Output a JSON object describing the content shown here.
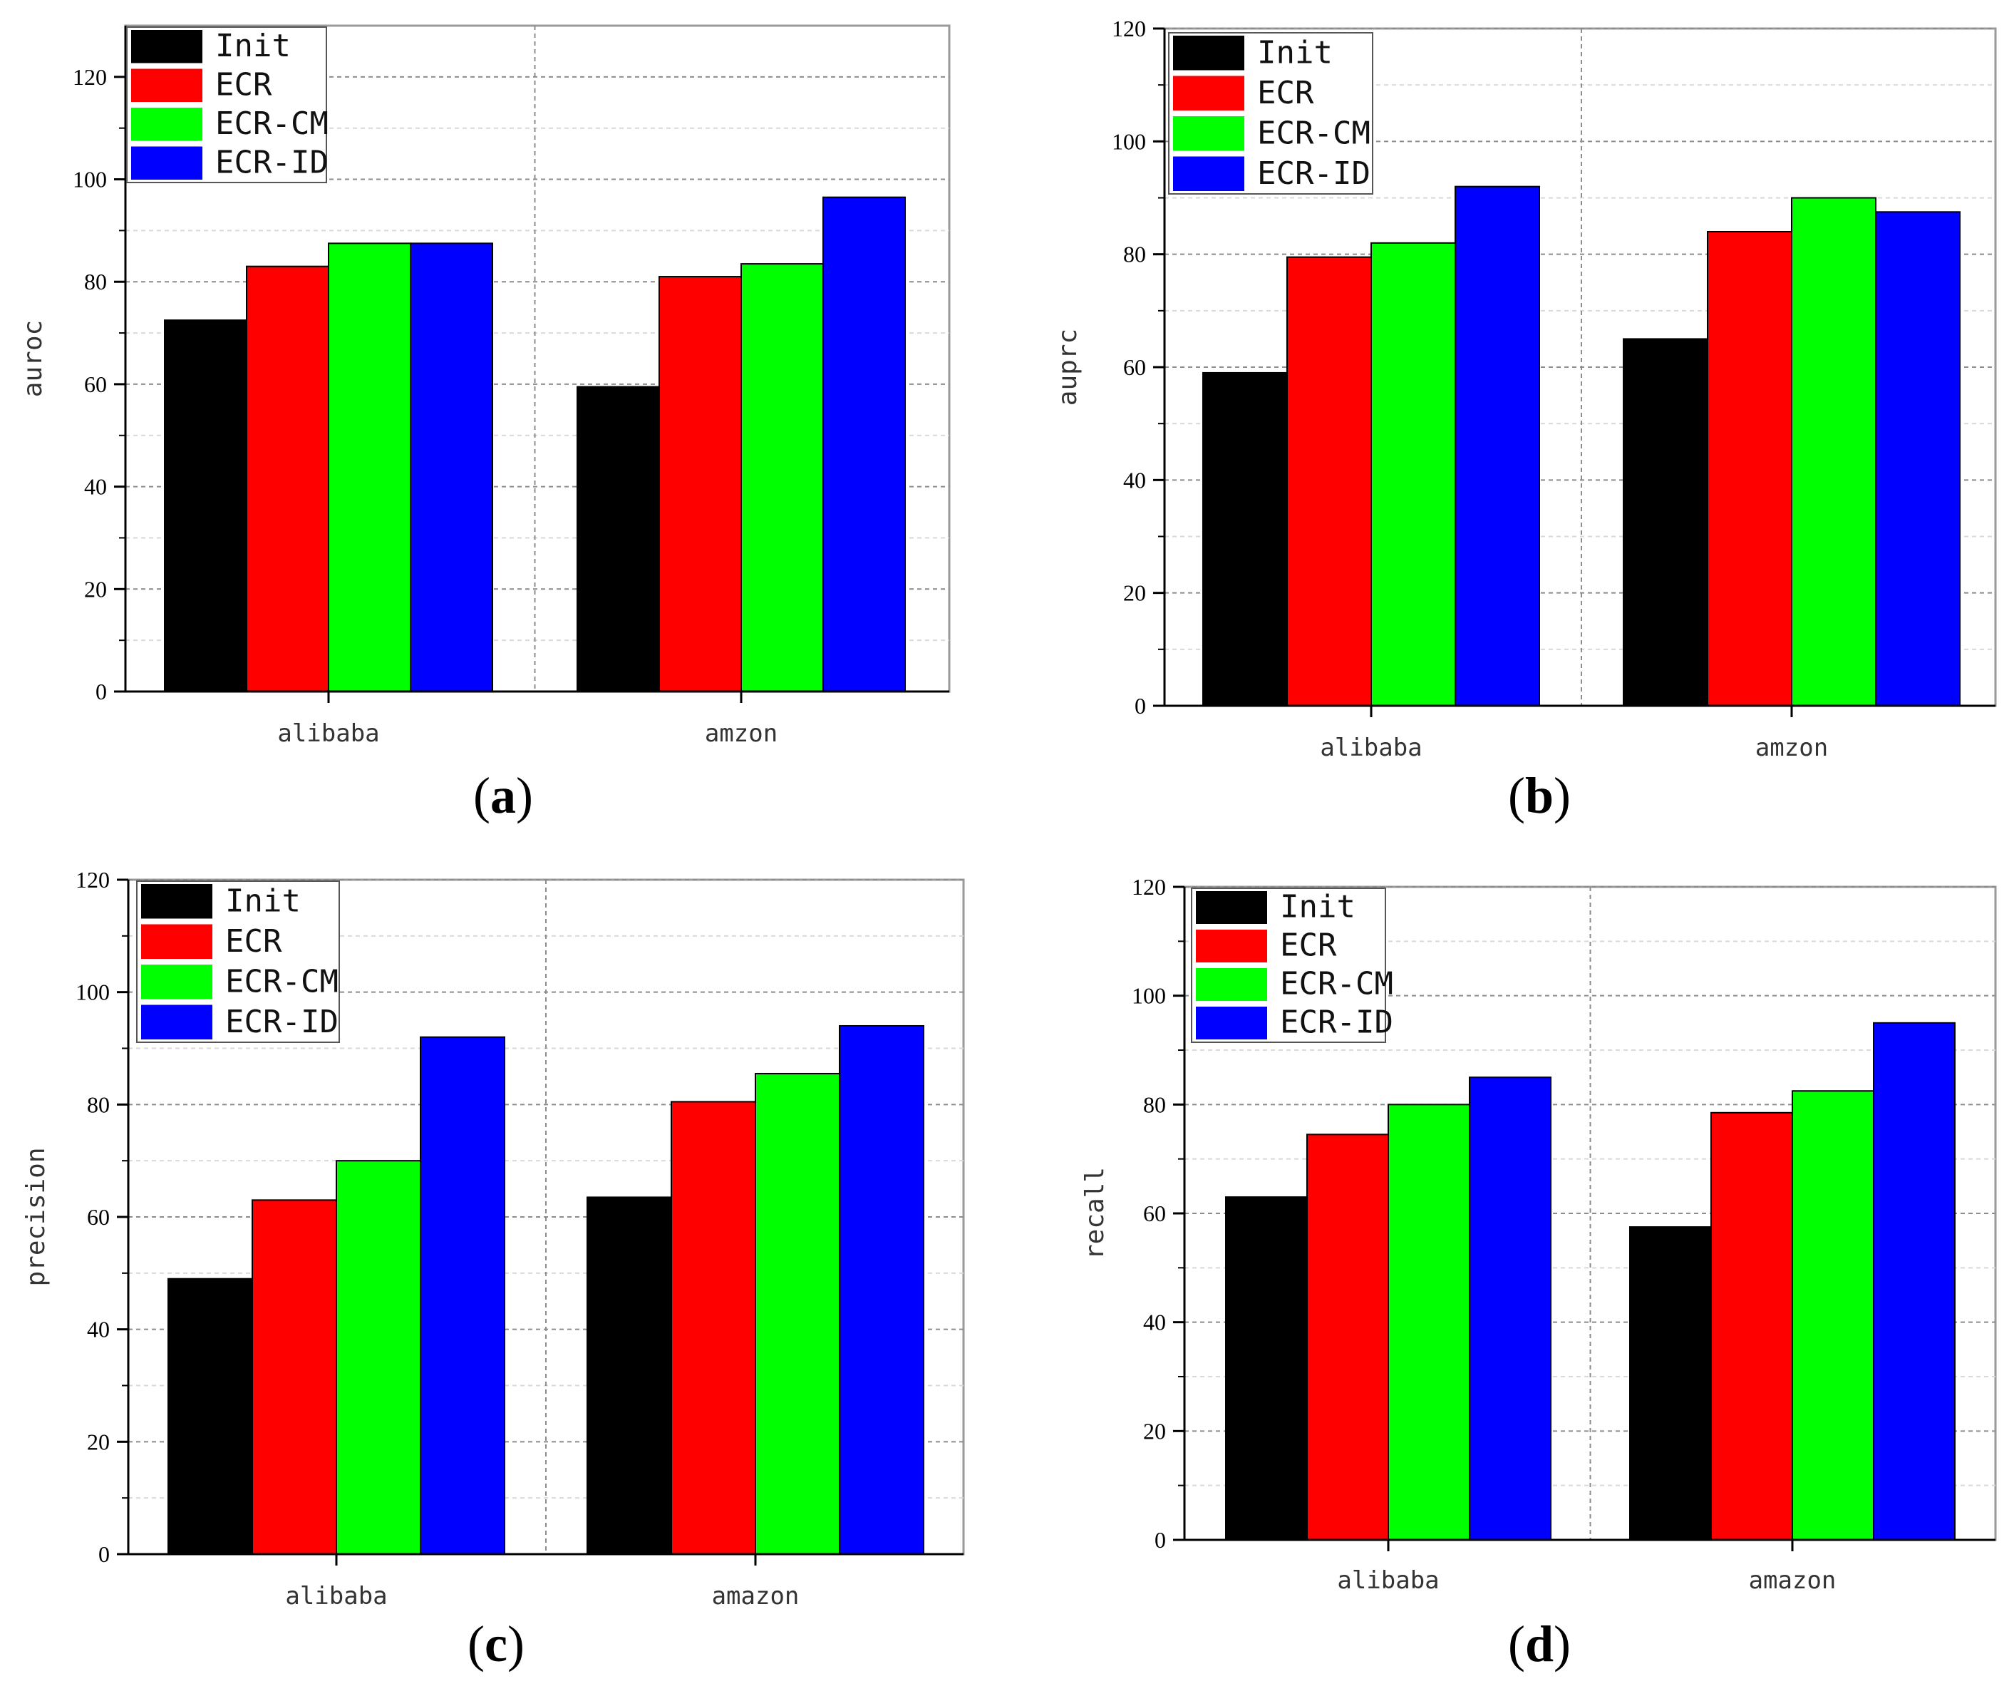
{
  "chart_data": [
    {
      "type": "bar",
      "panel": "a",
      "categories": [
        "alibaba",
        "amzon"
      ],
      "series": [
        {
          "name": "Init",
          "color": "#000000",
          "values": [
            72.5,
            59.5
          ]
        },
        {
          "name": "ECR",
          "color": "#ff0000",
          "values": [
            83.0,
            81.0
          ]
        },
        {
          "name": "ECR-CM",
          "color": "#00ff00",
          "values": [
            87.5,
            83.5
          ]
        },
        {
          "name": "ECR-ID",
          "color": "#0000ff",
          "values": [
            87.5,
            96.5
          ]
        }
      ],
      "ylabel": "auroc",
      "xlabel": "",
      "ylim": [
        0,
        130
      ],
      "yticks": [
        "0",
        "20",
        "40",
        "60",
        "80",
        "100",
        "120"
      ],
      "legend": "top-left",
      "grid": true
    },
    {
      "type": "bar",
      "panel": "b",
      "categories": [
        "alibaba",
        "amzon"
      ],
      "series": [
        {
          "name": "Init",
          "color": "#000000",
          "values": [
            59.0,
            65.0
          ]
        },
        {
          "name": "ECR",
          "color": "#ff0000",
          "values": [
            79.5,
            84.0
          ]
        },
        {
          "name": "ECR-CM",
          "color": "#00ff00",
          "values": [
            82.0,
            90.0
          ]
        },
        {
          "name": "ECR-ID",
          "color": "#0000ff",
          "values": [
            92.0,
            87.5
          ]
        }
      ],
      "ylabel": "auprc",
      "xlabel": "",
      "ylim": [
        0,
        120
      ],
      "yticks": [
        "0",
        "20",
        "40",
        "60",
        "80",
        "100",
        "120"
      ],
      "legend": "top-left",
      "grid": true
    },
    {
      "type": "bar",
      "panel": "c",
      "categories": [
        "alibaba",
        "amazon"
      ],
      "series": [
        {
          "name": "Init",
          "color": "#000000",
          "values": [
            49.0,
            63.5
          ]
        },
        {
          "name": "ECR",
          "color": "#ff0000",
          "values": [
            63.0,
            80.5
          ]
        },
        {
          "name": "ECR-CM",
          "color": "#00ff00",
          "values": [
            70.0,
            85.5
          ]
        },
        {
          "name": "ECR-ID",
          "color": "#0000ff",
          "values": [
            92.0,
            94.0
          ]
        }
      ],
      "ylabel": "precision",
      "xlabel": "",
      "ylim": [
        0,
        120
      ],
      "yticks": [
        "0",
        "20",
        "40",
        "60",
        "80",
        "100",
        "120"
      ],
      "legend": "top-left",
      "grid": true
    },
    {
      "type": "bar",
      "panel": "d",
      "categories": [
        "alibaba",
        "amazon"
      ],
      "series": [
        {
          "name": "Init",
          "color": "#000000",
          "values": [
            63.0,
            57.5
          ]
        },
        {
          "name": "ECR",
          "color": "#ff0000",
          "values": [
            74.5,
            78.5
          ]
        },
        {
          "name": "ECR-CM",
          "color": "#00ff00",
          "values": [
            80.0,
            82.5
          ]
        },
        {
          "name": "ECR-ID",
          "color": "#0000ff",
          "values": [
            85.0,
            95.0
          ]
        }
      ],
      "ylabel": "recall",
      "xlabel": "",
      "ylim": [
        0,
        120
      ],
      "yticks": [
        "0",
        "20",
        "40",
        "60",
        "80",
        "100",
        "120"
      ],
      "legend": "top-left",
      "grid": true
    }
  ]
}
